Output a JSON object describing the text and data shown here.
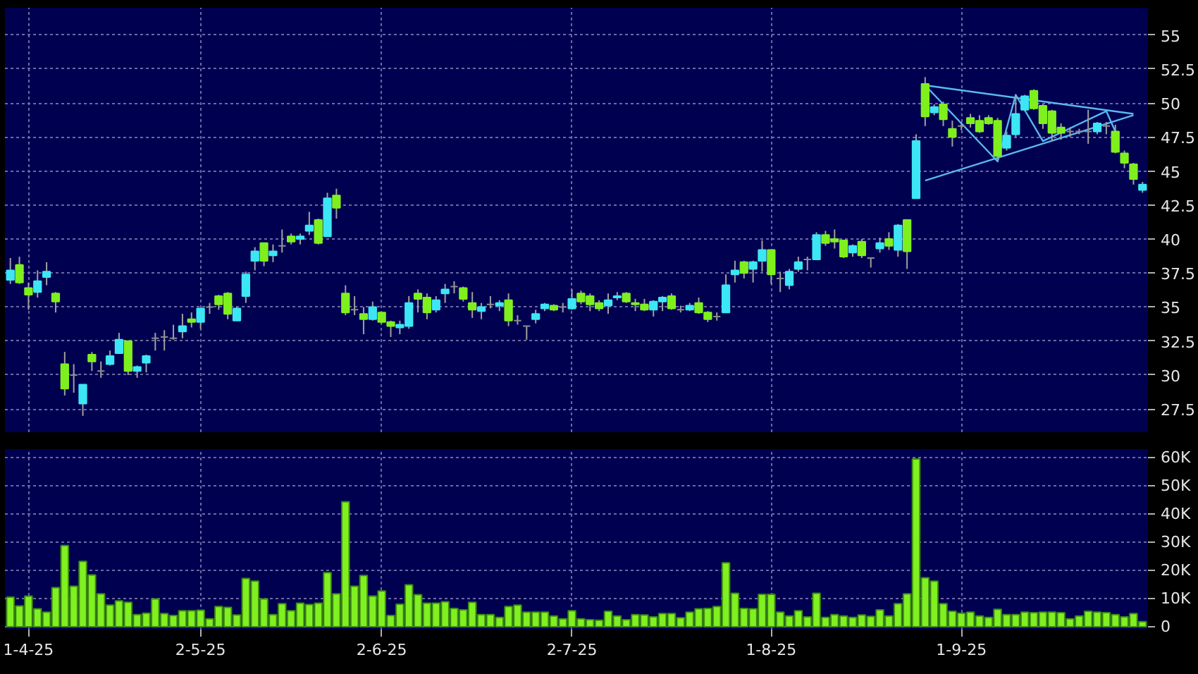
{
  "chart_data": [
    {
      "type": "candlestick",
      "categories": [
        null,
        null,
        null,
        null,
        null,
        null,
        null,
        null,
        null,
        null,
        null,
        null,
        null,
        null,
        null,
        null,
        null,
        null,
        null,
        null,
        null,
        null,
        null,
        null,
        null,
        null,
        null,
        null,
        null,
        null,
        null,
        null,
        null,
        null,
        null,
        null,
        null,
        null,
        null,
        null,
        null,
        null,
        null,
        null,
        null,
        null,
        null,
        null,
        null,
        null,
        null,
        null,
        null,
        null,
        null,
        null,
        null,
        null,
        null,
        null,
        null,
        null,
        null,
        null,
        null,
        null,
        null,
        null,
        null,
        null,
        null,
        null,
        null,
        null,
        null,
        null,
        null,
        null,
        null,
        null,
        null,
        null,
        null,
        null,
        null,
        null,
        null,
        null,
        null,
        null,
        null,
        null,
        null,
        null,
        null,
        null,
        null,
        null,
        null,
        null,
        null,
        null,
        null,
        null,
        null,
        null,
        null,
        null,
        null,
        null,
        null,
        null,
        null,
        null,
        null,
        null,
        null,
        null,
        null,
        null,
        null,
        null,
        null,
        null,
        null,
        null
      ],
      "ohlc": [
        [
          37.0,
          38.6,
          36.7,
          37.7
        ],
        [
          38.1,
          38.7,
          36.7,
          36.8
        ],
        [
          36.4,
          36.8,
          34.8,
          35.9
        ],
        [
          36.1,
          37.7,
          35.7,
          36.9
        ],
        [
          37.2,
          38.3,
          36.6,
          37.6
        ],
        [
          36.0,
          36.1,
          34.6,
          35.4
        ],
        [
          30.8,
          31.7,
          28.5,
          29.0
        ],
        [
          30.0,
          30.8,
          28.7,
          30.0
        ],
        [
          27.9,
          29.3,
          27.0,
          29.3
        ],
        [
          31.5,
          31.7,
          30.3,
          31.0
        ],
        [
          30.3,
          31.0,
          29.8,
          30.3
        ],
        [
          30.8,
          31.8,
          30.7,
          31.4
        ],
        [
          31.6,
          33.1,
          31.6,
          32.6
        ],
        [
          32.5,
          32.5,
          30.0,
          30.3
        ],
        [
          30.3,
          30.7,
          29.8,
          30.6
        ],
        [
          30.9,
          31.5,
          30.2,
          31.4
        ],
        [
          32.7,
          33.1,
          31.8,
          32.7
        ],
        [
          32.8,
          33.3,
          31.8,
          32.8
        ],
        [
          32.7,
          33.7,
          32.6,
          32.7
        ],
        [
          33.2,
          34.5,
          32.7,
          33.6
        ],
        [
          34.1,
          34.6,
          33.5,
          33.9
        ],
        [
          33.9,
          34.9,
          33.4,
          34.9
        ],
        [
          35.0,
          35.3,
          34.5,
          35.0
        ],
        [
          35.8,
          35.9,
          34.8,
          35.2
        ],
        [
          36.0,
          36.1,
          34.1,
          34.5
        ],
        [
          34.0,
          35.0,
          34.0,
          34.9
        ],
        [
          35.8,
          37.6,
          35.3,
          37.4
        ],
        [
          38.4,
          39.4,
          37.7,
          39.1
        ],
        [
          39.7,
          39.7,
          38.0,
          38.4
        ],
        [
          38.8,
          39.6,
          38.3,
          39.1
        ],
        [
          39.5,
          40.7,
          39.0,
          39.5
        ],
        [
          40.2,
          40.4,
          39.6,
          39.8
        ],
        [
          40.0,
          40.4,
          39.6,
          40.2
        ],
        [
          40.6,
          42.0,
          40.3,
          41.0
        ],
        [
          41.4,
          41.5,
          39.6,
          39.7
        ],
        [
          40.2,
          43.4,
          40.2,
          43.0
        ],
        [
          43.2,
          43.7,
          41.5,
          42.3
        ],
        [
          36.0,
          36.6,
          34.4,
          34.6
        ],
        [
          34.8,
          35.8,
          34.4,
          34.8
        ],
        [
          34.5,
          35.0,
          33.0,
          34.1
        ],
        [
          34.1,
          35.4,
          34.0,
          35.0
        ],
        [
          34.6,
          34.6,
          33.8,
          33.9
        ],
        [
          33.9,
          34.0,
          32.8,
          33.6
        ],
        [
          33.5,
          34.0,
          33.0,
          33.7
        ],
        [
          33.6,
          35.8,
          33.4,
          35.3
        ],
        [
          36.0,
          36.3,
          34.6,
          35.6
        ],
        [
          35.7,
          36.0,
          34.1,
          34.6
        ],
        [
          34.8,
          35.8,
          34.6,
          35.5
        ],
        [
          36.0,
          36.7,
          35.3,
          36.3
        ],
        [
          36.5,
          36.9,
          36.0,
          36.5
        ],
        [
          36.4,
          36.5,
          35.4,
          35.6
        ],
        [
          35.3,
          36.1,
          34.2,
          34.8
        ],
        [
          34.7,
          35.3,
          34.1,
          35.0
        ],
        [
          35.2,
          35.8,
          34.9,
          35.2
        ],
        [
          35.1,
          35.5,
          34.7,
          35.3
        ],
        [
          35.5,
          36.0,
          33.6,
          34.0
        ],
        [
          34.0,
          34.4,
          33.7,
          34.0
        ],
        [
          33.6,
          33.6,
          32.6,
          33.6
        ],
        [
          34.1,
          34.8,
          33.8,
          34.5
        ],
        [
          34.9,
          35.3,
          34.7,
          35.2
        ],
        [
          35.1,
          35.2,
          34.7,
          34.8
        ],
        [
          35.0,
          35.3,
          34.6,
          35.0
        ],
        [
          34.9,
          36.3,
          34.8,
          35.6
        ],
        [
          36.0,
          36.2,
          35.2,
          35.4
        ],
        [
          35.8,
          36.0,
          34.7,
          35.2
        ],
        [
          35.3,
          35.5,
          34.7,
          34.9
        ],
        [
          35.1,
          36.0,
          34.5,
          35.5
        ],
        [
          35.7,
          36.1,
          35.5,
          35.8
        ],
        [
          36.0,
          36.1,
          35.3,
          35.4
        ],
        [
          35.3,
          35.6,
          34.7,
          35.2
        ],
        [
          35.2,
          35.6,
          34.7,
          34.8
        ],
        [
          34.8,
          35.5,
          34.3,
          35.4
        ],
        [
          35.4,
          35.8,
          34.7,
          35.7
        ],
        [
          35.8,
          36.0,
          34.8,
          34.9
        ],
        [
          34.8,
          35.1,
          34.6,
          34.8
        ],
        [
          34.8,
          35.3,
          34.7,
          35.1
        ],
        [
          35.3,
          35.7,
          34.5,
          34.6
        ],
        [
          34.6,
          34.7,
          33.9,
          34.1
        ],
        [
          34.3,
          34.6,
          34.0,
          34.3
        ],
        [
          34.6,
          37.4,
          34.6,
          36.6
        ],
        [
          37.4,
          38.4,
          36.8,
          37.7
        ],
        [
          38.3,
          38.4,
          37.1,
          37.5
        ],
        [
          37.8,
          38.4,
          36.8,
          38.3
        ],
        [
          38.4,
          39.9,
          37.6,
          39.2
        ],
        [
          39.2,
          39.2,
          36.7,
          37.4
        ],
        [
          37.1,
          37.6,
          36.1,
          37.1
        ],
        [
          36.6,
          37.8,
          36.3,
          37.6
        ],
        [
          37.8,
          38.7,
          37.6,
          38.3
        ],
        [
          38.5,
          38.7,
          37.7,
          38.5
        ],
        [
          38.5,
          40.5,
          38.5,
          40.3
        ],
        [
          40.3,
          40.6,
          39.5,
          39.7
        ],
        [
          40.0,
          40.7,
          39.3,
          39.8
        ],
        [
          39.9,
          39.9,
          38.6,
          38.7
        ],
        [
          39.0,
          39.6,
          38.7,
          39.5
        ],
        [
          39.8,
          40.0,
          38.6,
          38.8
        ],
        [
          38.6,
          38.6,
          37.9,
          38.6
        ],
        [
          39.3,
          40.1,
          39.0,
          39.7
        ],
        [
          40.0,
          40.5,
          39.2,
          39.5
        ],
        [
          39.2,
          41.1,
          38.7,
          41.0
        ],
        [
          41.4,
          41.4,
          37.8,
          39.1
        ],
        [
          43.0,
          47.7,
          43.0,
          47.2
        ],
        [
          51.4,
          51.9,
          48.3,
          49.0
        ],
        [
          49.3,
          49.9,
          49.1,
          49.7
        ],
        [
          49.9,
          50.1,
          48.3,
          48.8
        ],
        [
          48.1,
          48.7,
          46.8,
          47.5
        ],
        [
          48.3,
          48.6,
          48.0,
          48.3
        ],
        [
          48.9,
          49.2,
          48.2,
          48.5
        ],
        [
          48.7,
          49.1,
          47.8,
          47.9
        ],
        [
          48.9,
          49.1,
          48.4,
          48.5
        ],
        [
          48.7,
          48.9,
          45.8,
          46.1
        ],
        [
          46.7,
          47.9,
          46.5,
          47.6
        ],
        [
          47.7,
          50.6,
          47.5,
          49.2
        ],
        [
          49.5,
          50.6,
          49.4,
          50.5
        ],
        [
          50.9,
          51.0,
          49.5,
          49.6
        ],
        [
          49.8,
          49.9,
          48.1,
          48.5
        ],
        [
          49.4,
          49.5,
          47.2,
          47.8
        ],
        [
          48.2,
          48.5,
          47.3,
          47.8
        ],
        [
          47.9,
          48.2,
          47.5,
          47.9
        ],
        [
          47.9,
          48.1,
          47.7,
          47.9
        ],
        [
          47.9,
          49.5,
          47.0,
          47.9
        ],
        [
          47.9,
          48.6,
          47.7,
          48.5
        ],
        [
          48.3,
          48.6,
          47.7,
          48.3
        ],
        [
          47.9,
          48.4,
          46.3,
          46.4
        ],
        [
          46.3,
          46.5,
          45.2,
          45.6
        ],
        [
          45.5,
          45.6,
          44.0,
          44.4
        ],
        [
          43.6,
          44.2,
          43.4,
          44.0
        ]
      ],
      "colors": [
        "#3ce6f5",
        "#7ff01e",
        "#7ff01e",
        "#3ce6f5",
        "#3ce6f5",
        "#7ff01e",
        "#7ff01e",
        "#8c8c8c",
        "#3ce6f5",
        "#7ff01e",
        "#8c8c8c",
        "#3ce6f5",
        "#3ce6f5",
        "#7ff01e",
        "#3ce6f5",
        "#3ce6f5",
        "#8c8c8c",
        "#8c8c8c",
        "#8c8c8c",
        "#3ce6f5",
        "#7ff01e",
        "#3ce6f5",
        "#8c8c8c",
        "#7ff01e",
        "#7ff01e",
        "#3ce6f5",
        "#3ce6f5",
        "#3ce6f5",
        "#7ff01e",
        "#3ce6f5",
        "#8c8c8c",
        "#7ff01e",
        "#3ce6f5",
        "#3ce6f5",
        "#7ff01e",
        "#3ce6f5",
        "#7ff01e",
        "#7ff01e",
        "#8c8c8c",
        "#7ff01e",
        "#3ce6f5",
        "#7ff01e",
        "#7ff01e",
        "#3ce6f5",
        "#3ce6f5",
        "#7ff01e",
        "#7ff01e",
        "#3ce6f5",
        "#3ce6f5",
        "#8c8c8c",
        "#7ff01e",
        "#7ff01e",
        "#3ce6f5",
        "#8c8c8c",
        "#3ce6f5",
        "#7ff01e",
        "#8c8c8c",
        "#8c8c8c",
        "#3ce6f5",
        "#3ce6f5",
        "#7ff01e",
        "#8c8c8c",
        "#3ce6f5",
        "#7ff01e",
        "#7ff01e",
        "#7ff01e",
        "#3ce6f5",
        "#3ce6f5",
        "#7ff01e",
        "#7ff01e",
        "#7ff01e",
        "#3ce6f5",
        "#3ce6f5",
        "#7ff01e",
        "#8c8c8c",
        "#3ce6f5",
        "#7ff01e",
        "#7ff01e",
        "#8c8c8c",
        "#3ce6f5",
        "#3ce6f5",
        "#7ff01e",
        "#3ce6f5",
        "#3ce6f5",
        "#7ff01e",
        "#8c8c8c",
        "#3ce6f5",
        "#3ce6f5",
        "#8c8c8c",
        "#3ce6f5",
        "#7ff01e",
        "#7ff01e",
        "#7ff01e",
        "#3ce6f5",
        "#7ff01e",
        "#8c8c8c",
        "#3ce6f5",
        "#7ff01e",
        "#3ce6f5",
        "#7ff01e",
        "#3ce6f5",
        "#7ff01e",
        "#3ce6f5",
        "#7ff01e",
        "#7ff01e",
        "#8c8c8c",
        "#7ff01e",
        "#7ff01e",
        "#7ff01e",
        "#7ff01e",
        "#3ce6f5",
        "#3ce6f5",
        "#3ce6f5",
        "#7ff01e",
        "#7ff01e",
        "#7ff01e",
        "#7ff01e",
        "#8c8c8c",
        "#8c8c8c",
        "#8c8c8c",
        "#3ce6f5",
        "#8c8c8c",
        "#7ff01e",
        "#7ff01e",
        "#7ff01e",
        "#3ce6f5"
      ],
      "series": [
        {
          "type": "line",
          "color": "#5ab8f0",
          "values": [
            null,
            null,
            null,
            null,
            null,
            null,
            null,
            null,
            null,
            null,
            null,
            null,
            null,
            null,
            null,
            null,
            null,
            null,
            null,
            null,
            null,
            null,
            null,
            null,
            null,
            null,
            null,
            null,
            null,
            null,
            null,
            null,
            null,
            null,
            null,
            null,
            null,
            null,
            null,
            null,
            null,
            null,
            null,
            null,
            null,
            null,
            null,
            null,
            null,
            null,
            null,
            null,
            null,
            null,
            null,
            null,
            null,
            null,
            null,
            null,
            null,
            null,
            null,
            null,
            null,
            null,
            null,
            null,
            null,
            null,
            null,
            null,
            null,
            null,
            null,
            null,
            null,
            null,
            null,
            null,
            null,
            null,
            null,
            null,
            null,
            null,
            null,
            null,
            null,
            null,
            null,
            null,
            null,
            null,
            null,
            null,
            null,
            null,
            null,
            null,
            null,
            51.3,
            null,
            null,
            null,
            null,
            null,
            null,
            null,
            null,
            null,
            null,
            null,
            null,
            null,
            null,
            null,
            null,
            null,
            null,
            null,
            null,
            null,
            null,
            49.2,
            null
          ]
        },
        {
          "type": "line",
          "color": "#5ab8f0",
          "values": [
            null,
            null,
            null,
            null,
            null,
            null,
            null,
            null,
            null,
            null,
            null,
            null,
            null,
            null,
            null,
            null,
            null,
            null,
            null,
            null,
            null,
            null,
            null,
            null,
            null,
            null,
            null,
            null,
            null,
            null,
            null,
            null,
            null,
            null,
            null,
            null,
            null,
            null,
            null,
            null,
            null,
            null,
            null,
            null,
            null,
            null,
            null,
            null,
            null,
            null,
            null,
            null,
            null,
            null,
            null,
            null,
            null,
            null,
            null,
            null,
            null,
            null,
            null,
            null,
            null,
            null,
            null,
            null,
            null,
            null,
            null,
            null,
            null,
            null,
            null,
            null,
            null,
            null,
            null,
            null,
            null,
            null,
            null,
            null,
            null,
            null,
            null,
            null,
            null,
            null,
            null,
            null,
            null,
            null,
            null,
            null,
            null,
            null,
            null,
            null,
            null,
            44.3,
            null,
            null,
            null,
            null,
            null,
            null,
            null,
            null,
            null,
            null,
            null,
            null,
            null,
            null,
            null,
            null,
            null,
            null,
            null,
            null,
            null,
            null,
            49.1,
            null
          ]
        },
        {
          "type": "line",
          "color": "#5ab8f0",
          "values": [
            null,
            null,
            null,
            null,
            null,
            null,
            null,
            null,
            null,
            null,
            null,
            null,
            null,
            null,
            null,
            null,
            null,
            null,
            null,
            null,
            null,
            null,
            null,
            null,
            null,
            null,
            null,
            null,
            null,
            null,
            null,
            null,
            null,
            null,
            null,
            null,
            null,
            null,
            null,
            null,
            null,
            null,
            null,
            null,
            null,
            null,
            null,
            null,
            null,
            null,
            null,
            null,
            null,
            null,
            null,
            null,
            null,
            null,
            null,
            null,
            null,
            null,
            null,
            null,
            null,
            null,
            null,
            null,
            null,
            null,
            null,
            null,
            null,
            null,
            null,
            null,
            null,
            null,
            null,
            null,
            null,
            null,
            null,
            null,
            null,
            null,
            null,
            null,
            null,
            null,
            null,
            null,
            null,
            null,
            null,
            null,
            null,
            null,
            null,
            null,
            null,
            51.3,
            null,
            null,
            null,
            null,
            null,
            null,
            null,
            45.7,
            null,
            50.6,
            null,
            null,
            47.2,
            null,
            null,
            null,
            null,
            null,
            null,
            49.4,
            47.9,
            null,
            null,
            null
          ]
        }
      ],
      "ylim": [
        25.8,
        57
      ],
      "yticks": [
        27.5,
        30,
        32.5,
        35,
        37.5,
        40,
        42.5,
        45,
        47.5,
        50,
        52.5,
        55
      ],
      "grid": true,
      "tick_labels": "y"
    },
    {
      "type": "bar",
      "categories": [
        null,
        null,
        "1-4-25",
        null,
        null,
        null,
        null,
        null,
        null,
        null,
        null,
        null,
        null,
        null,
        null,
        null,
        null,
        null,
        null,
        null,
        null,
        "2-5-25",
        null,
        null,
        null,
        null,
        null,
        null,
        null,
        null,
        null,
        null,
        null,
        null,
        null,
        null,
        null,
        null,
        null,
        null,
        null,
        "2-6-25",
        null,
        null,
        null,
        null,
        null,
        null,
        null,
        null,
        null,
        null,
        null,
        null,
        null,
        null,
        null,
        null,
        null,
        null,
        null,
        null,
        "2-7-25",
        null,
        null,
        null,
        null,
        null,
        null,
        null,
        null,
        null,
        null,
        null,
        null,
        null,
        null,
        null,
        null,
        null,
        null,
        null,
        null,
        null,
        "1-8-25",
        null,
        null,
        null,
        null,
        null,
        null,
        null,
        null,
        null,
        null,
        null,
        null,
        null,
        null,
        null,
        null,
        null,
        null,
        null,
        null,
        "1-9-25",
        null,
        null,
        null,
        null,
        null,
        null,
        null,
        null,
        null,
        null,
        null,
        null,
        null,
        null,
        null,
        null,
        null,
        null,
        null,
        null
      ],
      "values": [
        10500,
        7400,
        10900,
        6400,
        5200,
        13900,
        28800,
        14400,
        23200,
        18400,
        11700,
        7700,
        9200,
        8700,
        4300,
        4800,
        9900,
        4700,
        4000,
        5700,
        5700,
        5900,
        2800,
        7200,
        6900,
        4200,
        17100,
        16200,
        9900,
        4300,
        8200,
        5700,
        8400,
        7900,
        8400,
        19200,
        11700,
        44300,
        14400,
        18200,
        10900,
        12700,
        4000,
        8000,
        14900,
        11400,
        8400,
        8400,
        8900,
        6500,
        6000,
        8700,
        4300,
        4300,
        3300,
        7200,
        7700,
        5200,
        5200,
        5200,
        3800,
        2800,
        5700,
        2800,
        2500,
        2300,
        5500,
        3800,
        2500,
        4300,
        4200,
        3500,
        4700,
        4700,
        3200,
        5200,
        6400,
        6500,
        7200,
        22700,
        11900,
        6500,
        6400,
        11500,
        11500,
        5200,
        3800,
        5700,
        3500,
        11900,
        3300,
        4300,
        3800,
        3300,
        4200,
        3700,
        6000,
        3800,
        8200,
        11700,
        59500,
        17400,
        16200,
        8200,
        5500,
        4800,
        5200,
        3800,
        3300,
        6200,
        4300,
        4300,
        5200,
        5000,
        5200,
        5200,
        5000,
        2800,
        3800,
        5500,
        5200,
        5000,
        4300,
        3500,
        4700,
        1800
      ],
      "color": "#80f020",
      "ylim": [
        -1000,
        63000
      ],
      "yticks": [
        0,
        {
          "value": 10000,
          "label": "10K"
        },
        {
          "value": 20000,
          "label": "20K"
        },
        {
          "value": 30000,
          "label": "30K"
        },
        {
          "value": 40000,
          "label": "40K"
        },
        {
          "value": 50000,
          "label": "50K"
        },
        {
          "value": 60000,
          "label": "60K"
        }
      ],
      "grid": true
    }
  ]
}
